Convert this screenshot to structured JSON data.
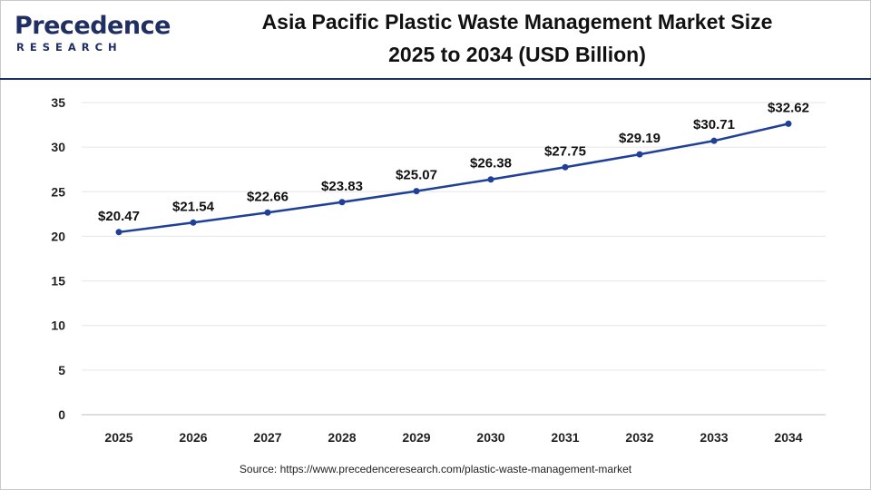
{
  "header": {
    "logo_word": "Precedence",
    "logo_sub": "RESEARCH",
    "title_line1": "Asia Pacific Plastic Waste Management Market Size",
    "title_line2": "2025 to 2034 (USD Billion)"
  },
  "source_text": "Source: https://www.precedenceresearch.com/plastic-waste-management-market",
  "colors": {
    "line": "#1f3f99",
    "brand": "#1f2f63",
    "grid": "#e6e6e6"
  },
  "chart_data": {
    "type": "line",
    "title": "Asia Pacific Plastic Waste Management Market Size 2025 to 2034 (USD Billion)",
    "categories": [
      "2025",
      "2026",
      "2027",
      "2028",
      "2029",
      "2030",
      "2031",
      "2032",
      "2033",
      "2034"
    ],
    "values": [
      20.47,
      21.54,
      22.66,
      23.83,
      25.07,
      26.38,
      27.75,
      29.19,
      30.71,
      32.62
    ],
    "data_labels": [
      "$20.47",
      "$21.54",
      "$22.66",
      "$23.83",
      "$25.07",
      "$26.38",
      "$27.75",
      "$29.19",
      "$30.71",
      "$32.62"
    ],
    "yticks": [
      "0",
      "5",
      "10",
      "15",
      "20",
      "25",
      "30",
      "35"
    ],
    "ylim": [
      0,
      35
    ],
    "xlabel": "",
    "ylabel": "",
    "grid": true,
    "legend": "none"
  }
}
